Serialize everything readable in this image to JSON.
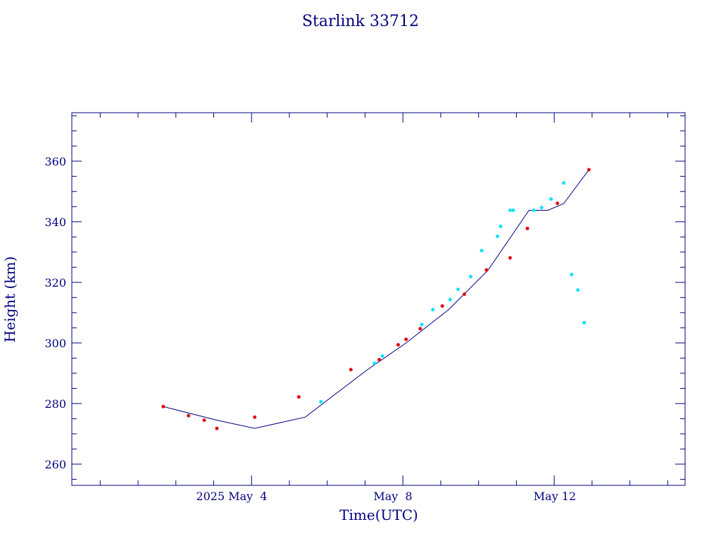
{
  "chart_data": {
    "type": "scatter",
    "title": "Starlink 33712",
    "xlabel": "Time(UTC)",
    "ylabel": "Height (km)",
    "x_tick_labels": [
      "2025 May  4",
      "May  8",
      "May 12"
    ],
    "y_tick_labels": [
      "260",
      "280",
      "300",
      "320",
      "340",
      "360"
    ],
    "ylim": [
      253,
      376
    ],
    "grid": false,
    "colors": {
      "axes": "#000080",
      "line": "#000080",
      "red_points": "#dd0000",
      "cyan_points": "#00e0ff"
    },
    "line": {
      "x": [
        "2025-05-01T16:00",
        "2025-05-03T02:00",
        "2025-05-04T02:00",
        "2025-05-05T10:00",
        "2025-05-07T01:00",
        "2025-05-08T02:00",
        "2025-05-09T05:00",
        "2025-05-10T06:00",
        "2025-05-11T08:00",
        "2025-05-11T20:00",
        "2025-05-12T06:00",
        "2025-05-12T22:00"
      ],
      "y": [
        279,
        274.5,
        271.8,
        275.5,
        291,
        300,
        311,
        324,
        343.8,
        343.8,
        346,
        357.2
      ]
    },
    "series": [
      {
        "marker": "red",
        "x": [
          "2025-05-01T16:00",
          "2025-05-02T08:00",
          "2025-05-02T18:00",
          "2025-05-03T02:00",
          "2025-05-04T02:00",
          "2025-05-05T06:00",
          "2025-05-06T15:00",
          "2025-05-07T09:00",
          "2025-05-07T21:00",
          "2025-05-08T02:00",
          "2025-05-08T11:00",
          "2025-05-09T01:00",
          "2025-05-09T15:00",
          "2025-05-10T05:00",
          "2025-05-10T20:00",
          "2025-05-11T07:00",
          "2025-05-12T02:00",
          "2025-05-12T22:00"
        ],
        "y": [
          279,
          276,
          274.5,
          271.8,
          275.5,
          282.2,
          291.2,
          294.5,
          299.4,
          301.2,
          304.7,
          312.2,
          316.1,
          324.1,
          328.1,
          337.8,
          346.1,
          357.2
        ]
      },
      {
        "marker": "cyan",
        "x": [
          "2025-05-05T20:00",
          "2025-05-07T06:00",
          "2025-05-07T11:00",
          "2025-05-08T12:00",
          "2025-05-08T19:00",
          "2025-05-09T06:00",
          "2025-05-09T11:00",
          "2025-05-09T19:00",
          "2025-05-10T02:00",
          "2025-05-10T12:00",
          "2025-05-10T14:00",
          "2025-05-10T20:00",
          "2025-05-10T22:00",
          "2025-05-11T11:00",
          "2025-05-11T16:00",
          "2025-05-11T22:00",
          "2025-05-12T06:00",
          "2025-05-12T11:00",
          "2025-05-12T15:00",
          "2025-05-12T19:00"
        ],
        "y": [
          280.6,
          293.3,
          295.7,
          306.1,
          311,
          314.3,
          317.7,
          321.9,
          330.5,
          335.2,
          338.5,
          343.8,
          343.8,
          343.8,
          344.7,
          347.5,
          352.8,
          322.6,
          317.5,
          306.7
        ]
      }
    ]
  }
}
